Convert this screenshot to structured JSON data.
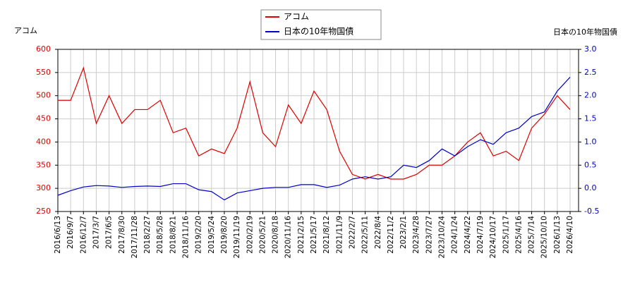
{
  "chart_data": {
    "type": "line",
    "y_label": "アコム",
    "y2_label": "日本の10年物国債",
    "categories": [
      "2016/6/13",
      "2016/9/7",
      "2016/12/7",
      "2017/3/7",
      "2017/6/5",
      "2017/8/30",
      "2017/11/28",
      "2018/2/27",
      "2018/5/28",
      "2018/8/21",
      "2018/11/16",
      "2019/2/20",
      "2019/5/24",
      "2019/8/20",
      "2019/11/19",
      "2020/2/19",
      "2020/5/21",
      "2020/8/18",
      "2020/11/16",
      "2021/2/15",
      "2021/5/17",
      "2021/8/12",
      "2021/11/9",
      "2022/2/7",
      "2022/5/11",
      "2022/8/4",
      "2022/11/2",
      "2023/2/1",
      "2023/4/28",
      "2023/7/27",
      "2023/10/24",
      "2024/1/24",
      "2024/4/22",
      "2024/7/19",
      "2024/10/17",
      "2025/1/17",
      "2025/4/16",
      "2025/7/14",
      "2025/10/10",
      "2026/1/13",
      "2026/4/10"
    ],
    "series": [
      {
        "name": "アコム",
        "color": "#dd0000",
        "axis": "y",
        "values": [
          490,
          490,
          560,
          440,
          500,
          440,
          470,
          470,
          490,
          420,
          430,
          370,
          385,
          375,
          430,
          530,
          420,
          390,
          480,
          440,
          510,
          470,
          380,
          330,
          320,
          330,
          320,
          320,
          330,
          350,
          350,
          370,
          400,
          420,
          370,
          380,
          360,
          430,
          460,
          500,
          470
        ]
      },
      {
        "name": "日本の10年物国債",
        "color": "#0000cc",
        "axis": "y2",
        "values": [
          -0.15,
          -0.05,
          0.03,
          0.06,
          0.05,
          0.02,
          0.04,
          0.05,
          0.04,
          0.1,
          0.1,
          -0.03,
          -0.07,
          -0.25,
          -0.1,
          -0.05,
          0.0,
          0.02,
          0.02,
          0.08,
          0.08,
          0.02,
          0.07,
          0.2,
          0.25,
          0.2,
          0.25,
          0.5,
          0.45,
          0.6,
          0.85,
          0.7,
          0.9,
          1.05,
          0.95,
          1.2,
          1.3,
          1.55,
          1.65,
          2.1,
          2.4
        ]
      }
    ],
    "ylim": [
      250,
      600
    ],
    "yticks": [
      250,
      300,
      350,
      400,
      450,
      500,
      550,
      600
    ],
    "y2lim": [
      -0.5,
      3.0
    ],
    "y2ticks": [
      {
        "value": -0.5,
        "label": "-0.5"
      },
      {
        "value": 0,
        "label": "0.0"
      },
      {
        "value": 0.5,
        "label": "0.5"
      },
      {
        "value": 1,
        "label": "1.0"
      },
      {
        "value": 1.5,
        "label": "1.5"
      },
      {
        "value": 2,
        "label": "2.0"
      },
      {
        "value": 2.5,
        "label": "2.5"
      },
      {
        "value": 3,
        "label": "3.0"
      }
    ],
    "grid": true,
    "legend": "top"
  }
}
